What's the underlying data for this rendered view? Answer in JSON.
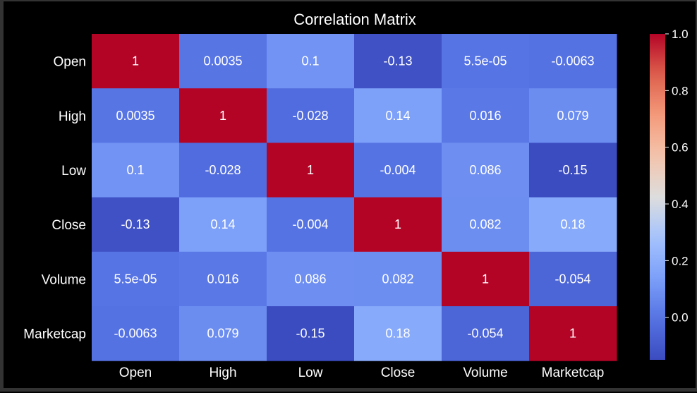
{
  "chart_data": {
    "type": "heatmap",
    "title": "Correlation Matrix",
    "labels": [
      "Open",
      "High",
      "Low",
      "Close",
      "Volume",
      "Marketcap"
    ],
    "values": [
      [
        1,
        0.0035,
        0.1,
        -0.13,
        5.5e-05,
        -0.0063
      ],
      [
        0.0035,
        1,
        -0.028,
        0.14,
        0.016,
        0.079
      ],
      [
        0.1,
        -0.028,
        1,
        -0.004,
        0.086,
        -0.15
      ],
      [
        -0.13,
        0.14,
        -0.004,
        1,
        0.082,
        0.18
      ],
      [
        5.5e-05,
        0.016,
        0.086,
        0.082,
        1,
        -0.054
      ],
      [
        -0.0063,
        0.079,
        -0.15,
        0.18,
        -0.054,
        1
      ]
    ],
    "value_labels": [
      [
        "1",
        "0.0035",
        "0.1",
        "-0.13",
        "5.5e-05",
        "-0.0063"
      ],
      [
        "0.0035",
        "1",
        "-0.028",
        "0.14",
        "0.016",
        "0.079"
      ],
      [
        "0.1",
        "-0.028",
        "1",
        "-0.004",
        "0.086",
        "-0.15"
      ],
      [
        "-0.13",
        "0.14",
        "-0.004",
        "1",
        "0.082",
        "0.18"
      ],
      [
        "5.5e-05",
        "0.016",
        "0.086",
        "0.082",
        "1",
        "-0.054"
      ],
      [
        "-0.0063",
        "0.079",
        "-0.15",
        "0.18",
        "-0.054",
        "1"
      ]
    ],
    "colormap": "coolwarm",
    "color_range": [
      -0.15,
      1.0
    ],
    "colorbar_ticks": [
      0.0,
      0.2,
      0.4,
      0.6,
      0.8,
      1.0
    ],
    "colorbar_tick_labels": [
      "0.0",
      "0.2",
      "0.4",
      "0.6",
      "0.8",
      "1.0"
    ]
  }
}
